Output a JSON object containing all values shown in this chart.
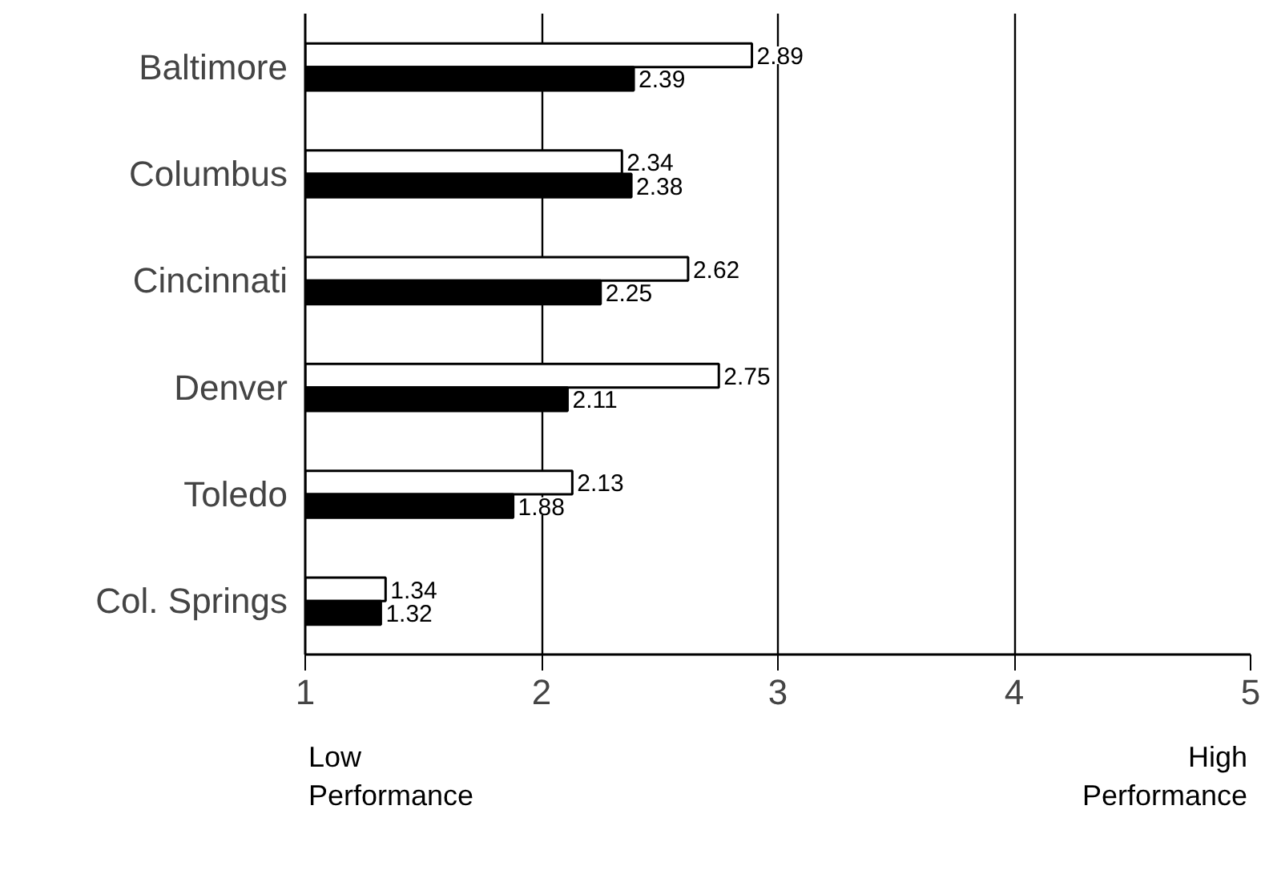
{
  "chart_data": {
    "type": "bar",
    "orientation": "horizontal",
    "categories": [
      "Baltimore",
      "Columbus",
      "Cincinnati",
      "Denver",
      "Toledo",
      "Col. Springs"
    ],
    "series": [
      {
        "color": "#ffffff",
        "values": [
          2.89,
          2.34,
          2.62,
          2.75,
          2.13,
          1.34
        ]
      },
      {
        "color": "#000000",
        "values": [
          2.39,
          2.38,
          2.25,
          2.11,
          1.88,
          1.32
        ]
      }
    ],
    "xlim": [
      1,
      5
    ],
    "xticks": [
      1,
      2,
      3,
      4,
      5
    ],
    "grid": "x",
    "data_labels": true,
    "annotations": [
      "Low\nPerformance",
      "High\nPerformance"
    ]
  }
}
